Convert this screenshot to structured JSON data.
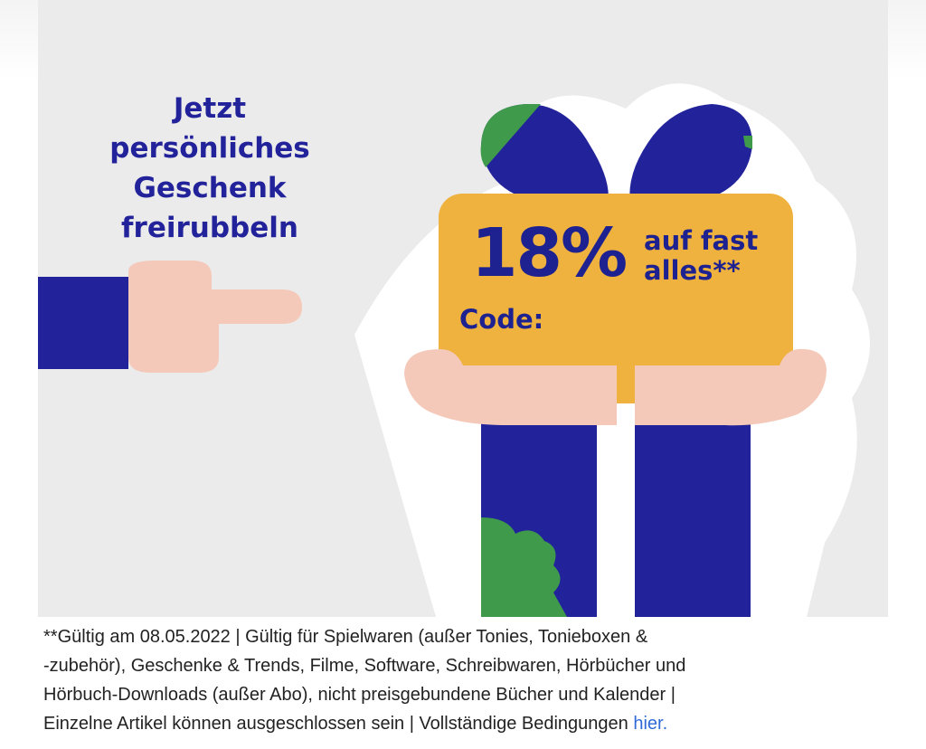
{
  "promo": {
    "headline_lines": [
      "Jetzt",
      "persönliches",
      "Geschenk",
      "freirubbeln"
    ],
    "discount_value": "18%",
    "discount_text_lines": [
      "auf fast",
      "alles**"
    ],
    "code_label": "Code:"
  },
  "footer": {
    "line1": "**Gültig am 08.05.2022 | Gültig für Spielwaren (außer Tonies, Tonieboxen &",
    "line2": "-zubehör), Geschenke & Trends, Filme, Software, Schreibwaren, Hörbücher und",
    "line3": "Hörbuch-Downloads (außer Abo), nicht preisgebundene Bücher und Kalender |",
    "line4": "Einzelne Artikel können ausgeschlossen sein | Vollständige Bedingungen",
    "link_label": "hier."
  },
  "colors": {
    "navy": "#22239a",
    "gold": "#efb23e",
    "skin": "#f5c9ba",
    "green": "#3f9b4b",
    "background": "#ebebeb",
    "link": "#2f6bd8"
  },
  "icons": [
    "pointing-hand-icon",
    "gift-icon",
    "holding-hands-icon"
  ]
}
